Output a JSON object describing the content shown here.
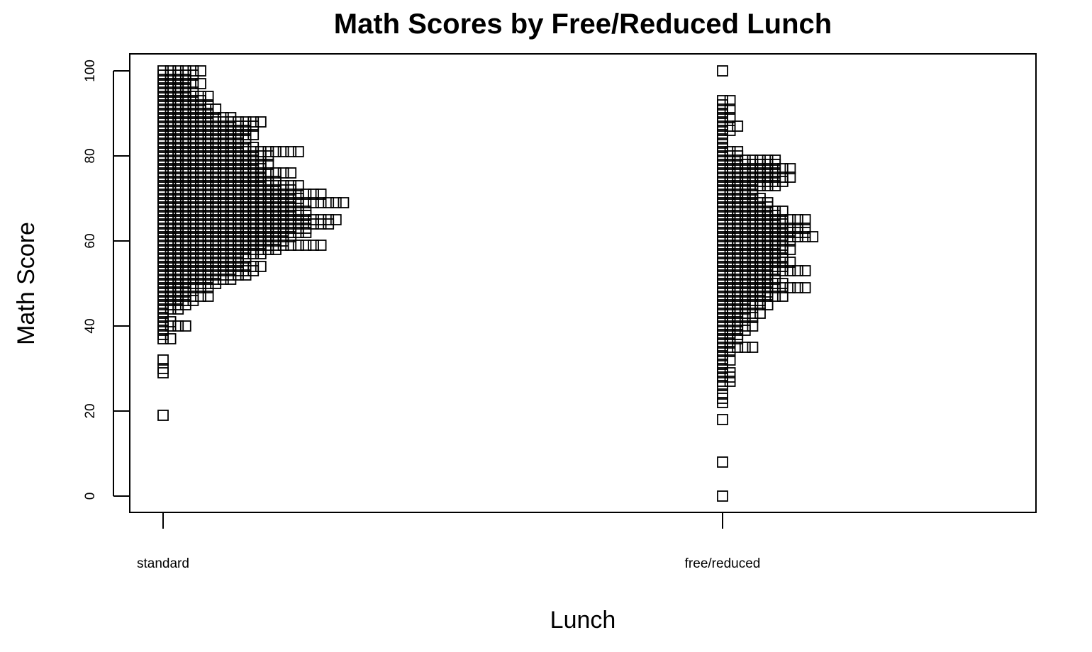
{
  "chart_data": {
    "type": "scatter",
    "plot_style": "stripchart-stacked",
    "marker": "open-square",
    "title": "Math Scores by Free/Reduced Lunch",
    "xlabel": "Lunch",
    "ylabel": "Math Score",
    "categories": [
      "standard",
      "free/reduced"
    ],
    "y_ticks": [
      0,
      20,
      40,
      60,
      80,
      100
    ],
    "ylim": [
      -4,
      104
    ],
    "grid": false,
    "legend": "none",
    "series": [
      {
        "category": "standard",
        "counts": [
          [
            19,
            1
          ],
          [
            29,
            1
          ],
          [
            30,
            1
          ],
          [
            32,
            1
          ],
          [
            37,
            2
          ],
          [
            38,
            1
          ],
          [
            39,
            1
          ],
          [
            40,
            4
          ],
          [
            41,
            2
          ],
          [
            42,
            1
          ],
          [
            43,
            1
          ],
          [
            44,
            3
          ],
          [
            45,
            4
          ],
          [
            46,
            5
          ],
          [
            47,
            7
          ],
          [
            48,
            4
          ],
          [
            49,
            7
          ],
          [
            50,
            8
          ],
          [
            51,
            10
          ],
          [
            52,
            12
          ],
          [
            53,
            13
          ],
          [
            54,
            14
          ],
          [
            55,
            11
          ],
          [
            56,
            12
          ],
          [
            57,
            14
          ],
          [
            58,
            16
          ],
          [
            59,
            22
          ],
          [
            60,
            17
          ],
          [
            61,
            18
          ],
          [
            62,
            20
          ],
          [
            63,
            20
          ],
          [
            64,
            23
          ],
          [
            65,
            24
          ],
          [
            66,
            20
          ],
          [
            67,
            20
          ],
          [
            68,
            18
          ],
          [
            69,
            25
          ],
          [
            70,
            19
          ],
          [
            71,
            22
          ],
          [
            72,
            18
          ],
          [
            73,
            19
          ],
          [
            74,
            16
          ],
          [
            75,
            14
          ],
          [
            76,
            18
          ],
          [
            77,
            14
          ],
          [
            78,
            15
          ],
          [
            79,
            13
          ],
          [
            80,
            15
          ],
          [
            81,
            19
          ],
          [
            82,
            13
          ],
          [
            83,
            11
          ],
          [
            84,
            12
          ],
          [
            85,
            13
          ],
          [
            86,
            12
          ],
          [
            87,
            13
          ],
          [
            88,
            14
          ],
          [
            89,
            10
          ],
          [
            90,
            7
          ],
          [
            91,
            8
          ],
          [
            92,
            7
          ],
          [
            93,
            6
          ],
          [
            94,
            7
          ],
          [
            95,
            5
          ],
          [
            96,
            4
          ],
          [
            97,
            6
          ],
          [
            98,
            4
          ],
          [
            99,
            5
          ],
          [
            100,
            6
          ]
        ]
      },
      {
        "category": "free/reduced",
        "counts": [
          [
            0,
            1
          ],
          [
            8,
            1
          ],
          [
            18,
            1
          ],
          [
            22,
            1
          ],
          [
            23,
            1
          ],
          [
            24,
            1
          ],
          [
            26,
            1
          ],
          [
            27,
            2
          ],
          [
            28,
            2
          ],
          [
            29,
            2
          ],
          [
            30,
            1
          ],
          [
            31,
            1
          ],
          [
            32,
            2
          ],
          [
            33,
            1
          ],
          [
            34,
            2
          ],
          [
            35,
            5
          ],
          [
            36,
            2
          ],
          [
            37,
            3
          ],
          [
            38,
            3
          ],
          [
            39,
            4
          ],
          [
            40,
            5
          ],
          [
            41,
            3
          ],
          [
            42,
            5
          ],
          [
            43,
            6
          ],
          [
            44,
            4
          ],
          [
            45,
            7
          ],
          [
            46,
            6
          ],
          [
            47,
            9
          ],
          [
            48,
            7
          ],
          [
            49,
            12
          ],
          [
            50,
            9
          ],
          [
            51,
            8
          ],
          [
            52,
            7
          ],
          [
            53,
            12
          ],
          [
            54,
            9
          ],
          [
            55,
            10
          ],
          [
            56,
            9
          ],
          [
            57,
            8
          ],
          [
            58,
            10
          ],
          [
            59,
            9
          ],
          [
            60,
            10
          ],
          [
            61,
            13
          ],
          [
            62,
            12
          ],
          [
            63,
            12
          ],
          [
            64,
            9
          ],
          [
            65,
            12
          ],
          [
            66,
            8
          ],
          [
            67,
            9
          ],
          [
            68,
            7
          ],
          [
            69,
            7
          ],
          [
            70,
            6
          ],
          [
            71,
            5
          ],
          [
            72,
            5
          ],
          [
            73,
            8
          ],
          [
            74,
            9
          ],
          [
            75,
            10
          ],
          [
            76,
            8
          ],
          [
            77,
            10
          ],
          [
            78,
            8
          ],
          [
            79,
            8
          ],
          [
            80,
            3
          ],
          [
            81,
            3
          ],
          [
            82,
            1
          ],
          [
            83,
            1
          ],
          [
            84,
            1
          ],
          [
            85,
            1
          ],
          [
            86,
            2
          ],
          [
            87,
            3
          ],
          [
            88,
            1
          ],
          [
            89,
            2
          ],
          [
            90,
            1
          ],
          [
            91,
            2
          ],
          [
            92,
            1
          ],
          [
            93,
            2
          ],
          [
            100,
            1
          ]
        ]
      }
    ]
  }
}
